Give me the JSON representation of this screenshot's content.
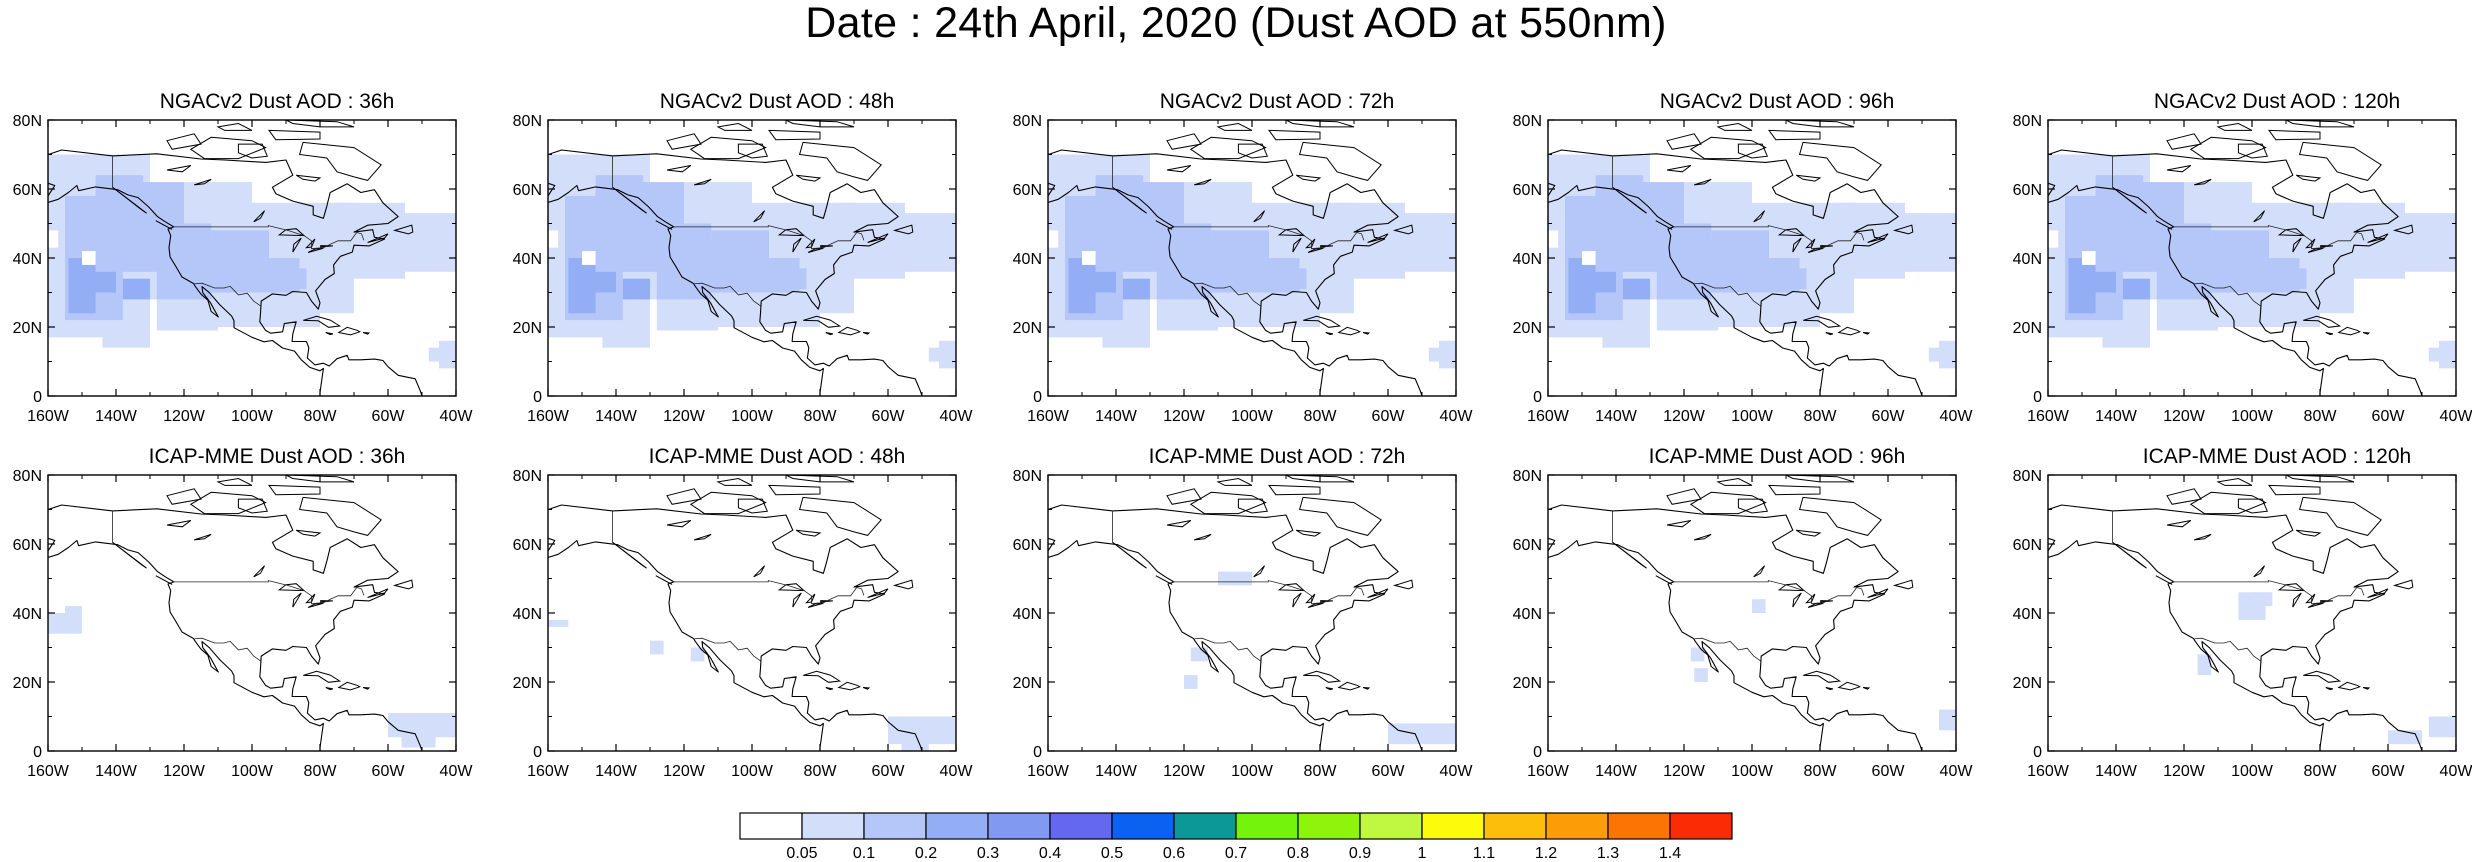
{
  "figure": {
    "title": "Date : 24th April, 2020 (Dust AOD at 550nm)"
  },
  "map_axes": {
    "lon_ticks": [
      "160W",
      "140W",
      "120W",
      "100W",
      "80W",
      "60W",
      "40W"
    ],
    "lat_ticks": [
      "0",
      "20N",
      "40N",
      "60N",
      "80N"
    ],
    "lon_range_deg": [
      -160,
      -40
    ],
    "lat_range_deg": [
      0,
      80
    ]
  },
  "panels": [
    {
      "title": "NGACv2 Dust AOD : 36h",
      "model": "NGACv2",
      "lead": "36h",
      "plume": 1.0
    },
    {
      "title": "NGACv2 Dust AOD : 48h",
      "model": "NGACv2",
      "lead": "48h",
      "plume": 1.05
    },
    {
      "title": "NGACv2 Dust AOD : 72h",
      "model": "NGACv2",
      "lead": "72h",
      "plume": 1.08
    },
    {
      "title": "NGACv2 Dust AOD : 96h",
      "model": "NGACv2",
      "lead": "96h",
      "plume": 1.1
    },
    {
      "title": "NGACv2 Dust AOD : 120h",
      "model": "NGACv2",
      "lead": "120h",
      "plume": 1.12
    },
    {
      "title": "ICAP-MME Dust AOD : 36h",
      "model": "ICAP-MME",
      "lead": "36h",
      "plume": 0.3
    },
    {
      "title": "ICAP-MME Dust AOD : 48h",
      "model": "ICAP-MME",
      "lead": "48h",
      "plume": 0.3
    },
    {
      "title": "ICAP-MME Dust AOD : 72h",
      "model": "ICAP-MME",
      "lead": "72h",
      "plume": 0.35
    },
    {
      "title": "ICAP-MME Dust AOD : 96h",
      "model": "ICAP-MME",
      "lead": "96h",
      "plume": 0.35
    },
    {
      "title": "ICAP-MME Dust AOD : 120h",
      "model": "ICAP-MME",
      "lead": "120h",
      "plume": 0.4
    }
  ],
  "colorbar": {
    "labels": [
      "0.05",
      "0.1",
      "0.2",
      "0.3",
      "0.4",
      "0.5",
      "0.6",
      "0.7",
      "0.8",
      "0.9",
      "1",
      "1.1",
      "1.2",
      "1.3",
      "1.4"
    ],
    "colors": [
      "#ffffff",
      "#d3defa",
      "#b5c6f8",
      "#94aef6",
      "#8299f2",
      "#6467f0",
      "#0b61f0",
      "#0c9896",
      "#74f40c",
      "#8ff40b",
      "#c0f740",
      "#fdfb0b",
      "#fcbe0b",
      "#fc9c06",
      "#fb7504",
      "#fb2c05"
    ]
  },
  "aod_shades": {
    "light": "#d3defa",
    "medium": "#b5c6f8",
    "dark": "#94aef6"
  }
}
